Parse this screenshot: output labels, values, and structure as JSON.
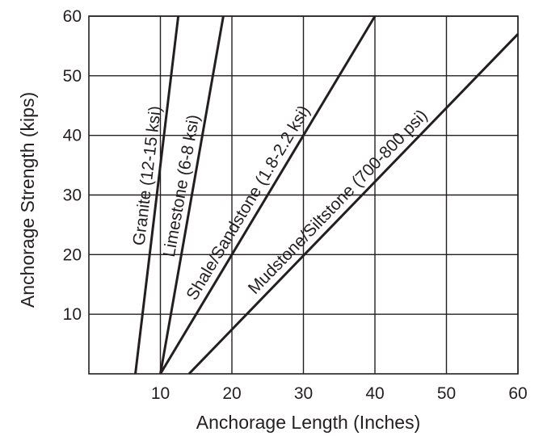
{
  "chart_data": {
    "type": "line",
    "title": "",
    "xlabel": "Anchorage Length (Inches)",
    "ylabel": "Anchorage Strength (kips)",
    "xlim": [
      0,
      60
    ],
    "ylim": [
      0,
      60
    ],
    "x_ticks": [
      10,
      20,
      30,
      40,
      50,
      60
    ],
    "y_ticks": [
      10,
      20,
      30,
      40,
      50,
      60
    ],
    "grid": true,
    "legend": "none",
    "series": [
      {
        "name": "Granite (12-15 ksi)",
        "x": [
          6.5,
          12.5
        ],
        "y": [
          0,
          60
        ]
      },
      {
        "name": "Limestone (6-8 ksi)",
        "x": [
          10,
          18.8
        ],
        "y": [
          0,
          60
        ]
      },
      {
        "name": "Shale/Sandstone (1.8-2.2 ksi)",
        "x": [
          10,
          40
        ],
        "y": [
          0,
          60
        ]
      },
      {
        "name": "Mudstone/Siltstone (700-800 psi)",
        "x": [
          14,
          60
        ],
        "y": [
          0,
          57
        ]
      }
    ]
  }
}
